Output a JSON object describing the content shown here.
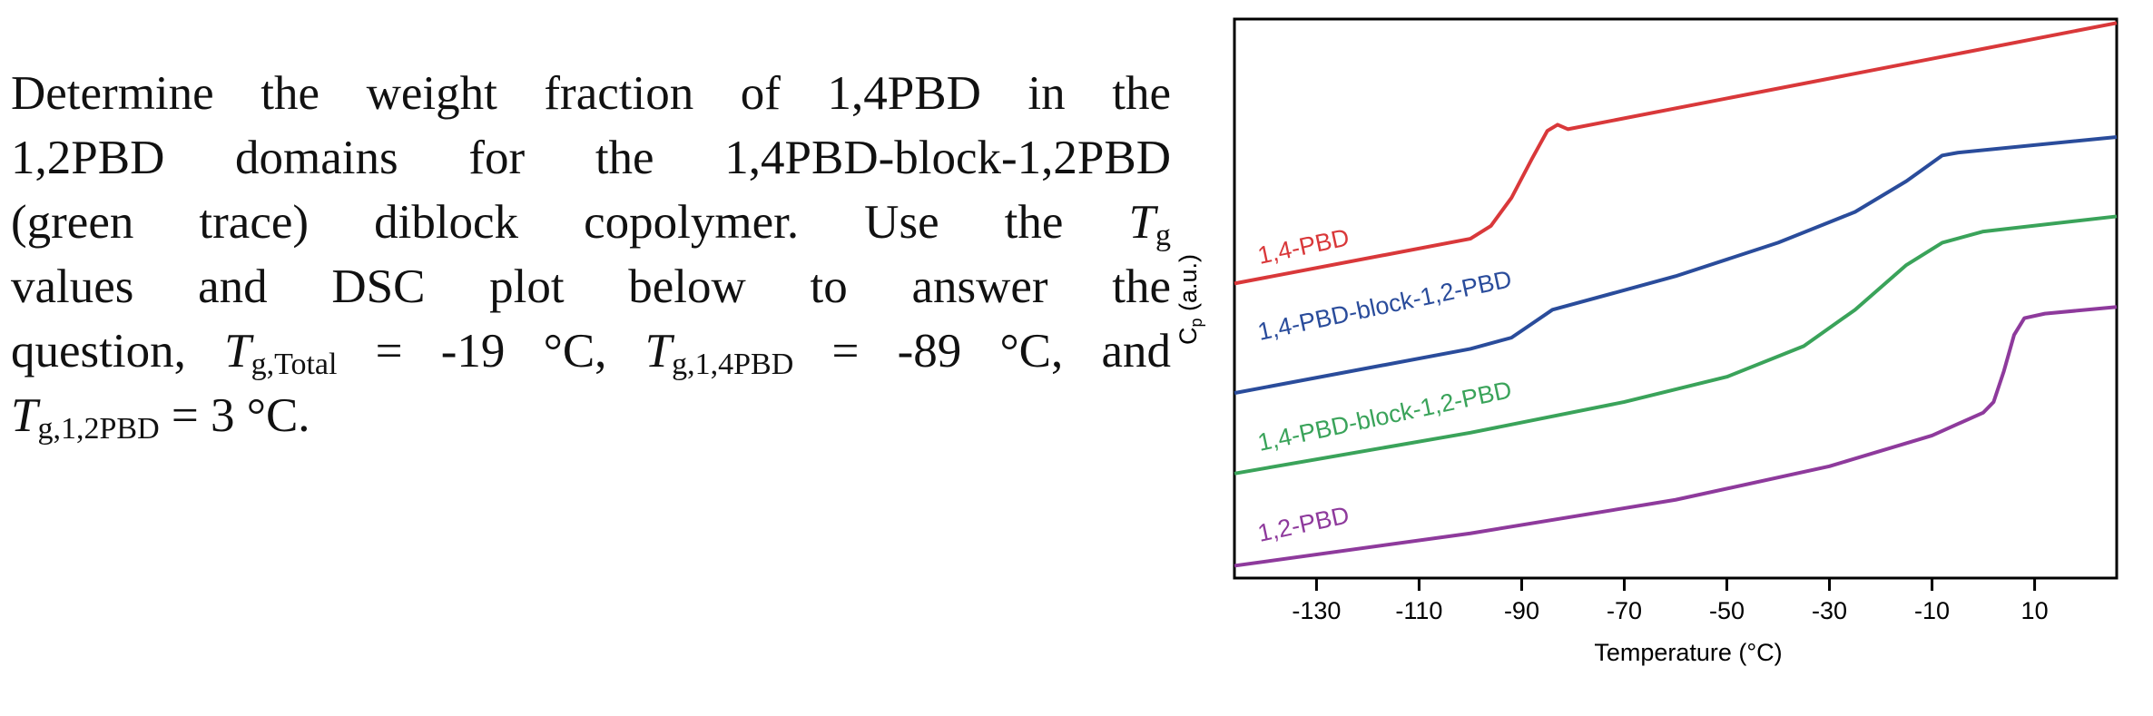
{
  "question": {
    "lines": [
      [
        {
          "text": "Determine the weight fraction of 1,4PBD in the"
        }
      ],
      [
        {
          "text": "1,2PBD domains for the 1,4PBD-block-1,2PBD"
        }
      ],
      [
        {
          "text": "(green trace) diblock copolymer. Use the "
        },
        {
          "italic": "T"
        },
        {
          "sub": "g"
        }
      ],
      [
        {
          "text": "values and DSC plot below to answer the"
        }
      ],
      [
        {
          "text": "question, "
        },
        {
          "italic": "T"
        },
        {
          "sub": "g,Total"
        },
        {
          "text": " = -19 °C, "
        },
        {
          "italic": "T"
        },
        {
          "sub": "g,1,4PBD"
        },
        {
          "text": " = -89 °C, and"
        }
      ],
      [
        {
          "italic": "T"
        },
        {
          "sub": "g,1,2PBD"
        },
        {
          "text": " = 3 °C."
        }
      ]
    ]
  },
  "chart_data": {
    "type": "line",
    "xlabel": "Temperature (°C)",
    "ylabel": {
      "symbol": "C",
      "subscript": "p",
      "unit": " (a.u.)"
    },
    "xlim": [
      -146,
      26
    ],
    "ylim": [
      0,
      100
    ],
    "xticks": [
      -130,
      -110,
      -90,
      -70,
      -50,
      -30,
      -10,
      10
    ],
    "series": [
      {
        "name": "1,4-PBD",
        "color": "#d9383a",
        "x": [
          -146,
          -100,
          -96,
          -92,
          -88,
          -85,
          -83,
          -81,
          26
        ],
        "values": [
          52.7,
          60.7,
          63,
          68,
          75,
          80,
          81.1,
          80.3,
          99.3
        ]
      },
      {
        "name": "1,4-PBD-block-1,2-PBD",
        "color": "#2a4c9b",
        "x": [
          -146,
          -100,
          -92,
          -88,
          -84,
          -60,
          -40,
          -25,
          -15,
          -8,
          -5,
          26
        ],
        "values": [
          33.1,
          41,
          43,
          45.5,
          48,
          54,
          60,
          65.5,
          71,
          75.6,
          76.1,
          78.9
        ]
      },
      {
        "name": "1,4-PBD-block-1,2-PBD",
        "color": "#3aa35a",
        "x": [
          -146,
          -100,
          -70,
          -50,
          -35,
          -25,
          -15,
          -8,
          0,
          26
        ],
        "values": [
          18.7,
          26,
          31.5,
          36,
          41.5,
          48,
          56,
          60,
          62,
          64.7
        ]
      },
      {
        "name": "1,2-PBD",
        "color": "#8e3a9c",
        "x": [
          -146,
          -100,
          -60,
          -30,
          -10,
          0,
          2,
          4,
          6,
          8,
          12,
          26
        ],
        "values": [
          2.2,
          8,
          14,
          20,
          25.5,
          29.6,
          31.5,
          37,
          43.5,
          46.5,
          47.3,
          48.5
        ]
      }
    ]
  }
}
